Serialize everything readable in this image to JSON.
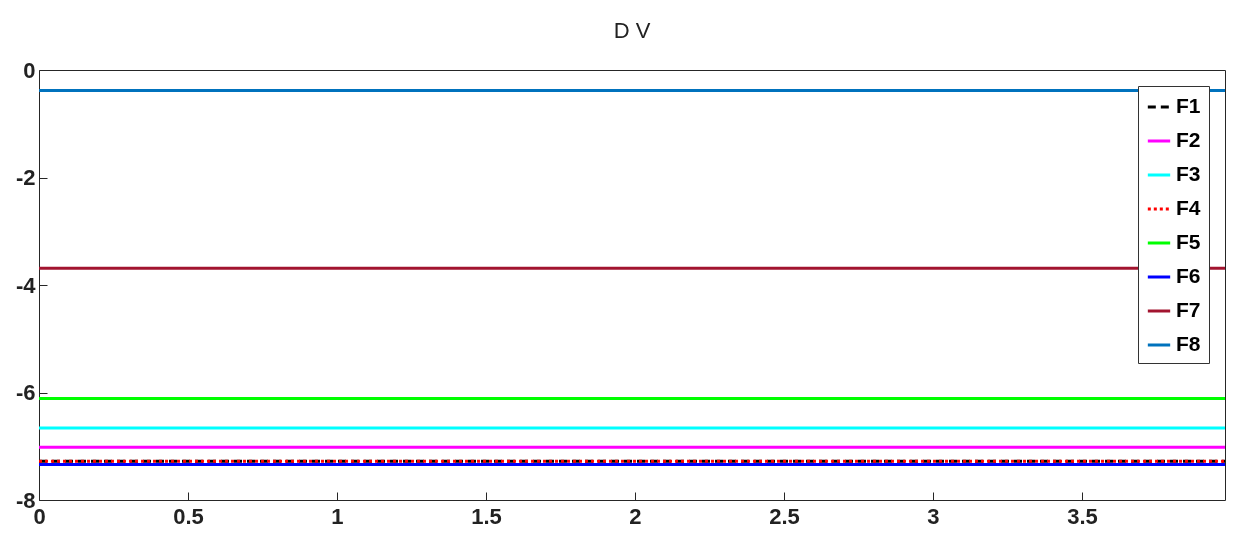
{
  "chart_data": {
    "type": "line",
    "title": "D V",
    "x": [
      0,
      3.98
    ],
    "series": [
      {
        "name": "F1",
        "color": "#000000",
        "line_style": "dashed",
        "values": [
          -7.28,
          -7.28
        ]
      },
      {
        "name": "F2",
        "color": "#ff00ff",
        "values": [
          -7.02,
          -7.02
        ]
      },
      {
        "name": "F3",
        "color": "#00ffff",
        "values": [
          -6.66,
          -6.66
        ]
      },
      {
        "name": "F4",
        "color": "#ff0000",
        "line_style": "dotted",
        "values": [
          -7.28,
          -7.28
        ]
      },
      {
        "name": "F5",
        "color": "#00ff00",
        "values": [
          -6.11,
          -6.11
        ]
      },
      {
        "name": "F6",
        "color": "#0000ff",
        "values": [
          -7.34,
          -7.34
        ]
      },
      {
        "name": "F7",
        "color": "#a2142f",
        "values": [
          -3.69,
          -3.69
        ]
      },
      {
        "name": "F8",
        "color": "#0072bd",
        "values": [
          -0.38,
          -0.38
        ]
      }
    ],
    "xlim": [
      0,
      3.98
    ],
    "xticks": [
      0,
      0.5,
      1,
      1.5,
      2,
      2.5,
      3,
      3.5
    ],
    "ylim": [
      -8,
      0
    ],
    "yticks": [
      -8,
      -6,
      -4,
      -2,
      0
    ],
    "grid": false,
    "legend": "top right"
  }
}
